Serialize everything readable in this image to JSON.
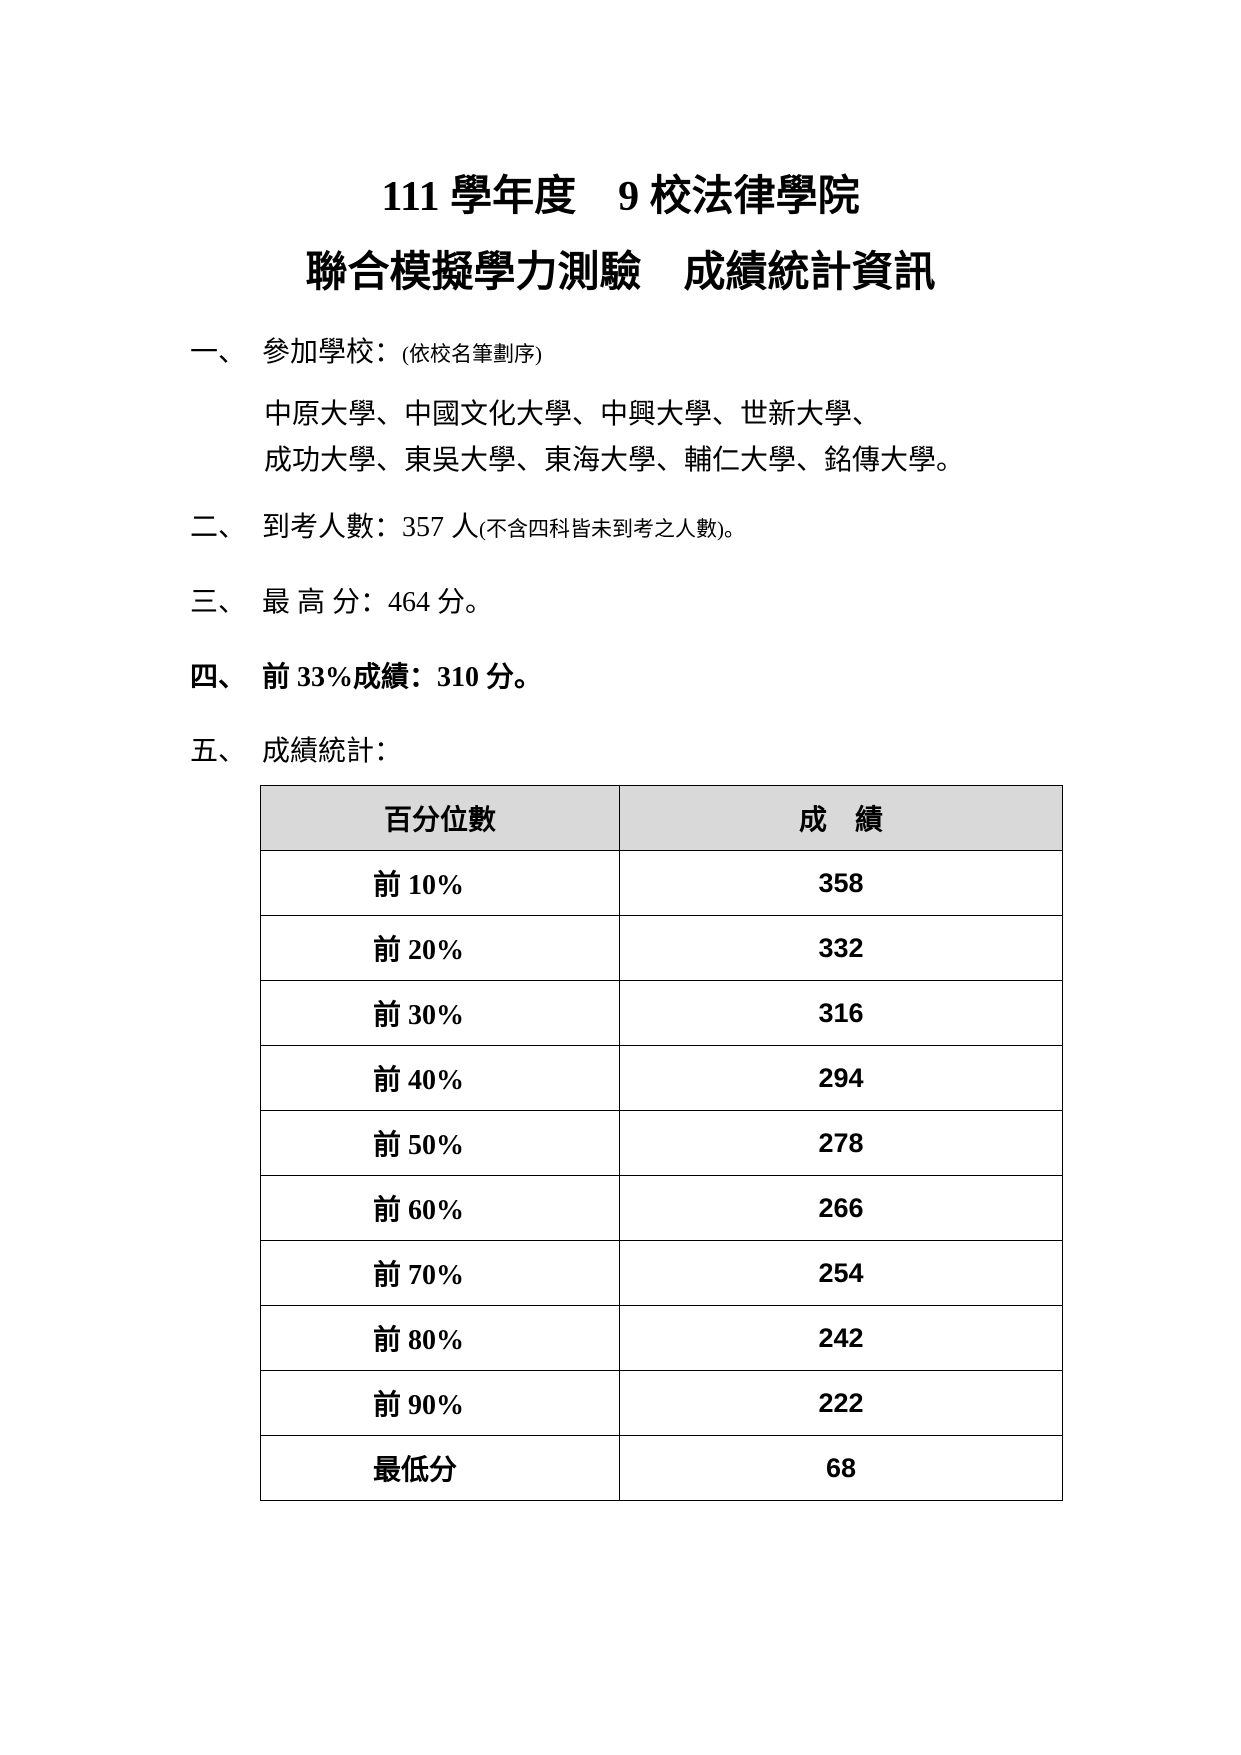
{
  "title": {
    "line1": "111 學年度　9 校法律學院",
    "line2": "聯合模擬學力測驗　成績統計資訊"
  },
  "sections": [
    {
      "num": "一、",
      "label": "參加學校：",
      "note": "(依校名筆劃序)"
    },
    {
      "num": "二、",
      "label": "到考人數：357 人",
      "note": "(不含四科皆未到考之人數)。"
    },
    {
      "num": "三、",
      "label": "最 高 分：464 分。"
    },
    {
      "num": "四、",
      "label": "前 33%成績：310 分。"
    },
    {
      "num": "五、",
      "label": "成績統計："
    }
  ],
  "schools": {
    "line1": "中原大學、中國文化大學、中興大學、世新大學、",
    "line2": "成功大學、東吳大學、東海大學、輔仁大學、銘傳大學。"
  },
  "table": {
    "headers": [
      "百分位數",
      "成　績"
    ],
    "rows": [
      [
        "前 10%",
        "358"
      ],
      [
        "前 20%",
        "332"
      ],
      [
        "前 30%",
        "316"
      ],
      [
        "前 40%",
        "294"
      ],
      [
        "前 50%",
        "278"
      ],
      [
        "前 60%",
        "266"
      ],
      [
        "前 70%",
        "254"
      ],
      [
        "前 80%",
        "242"
      ],
      [
        "前 90%",
        "222"
      ],
      [
        "最低分",
        "68"
      ]
    ]
  }
}
